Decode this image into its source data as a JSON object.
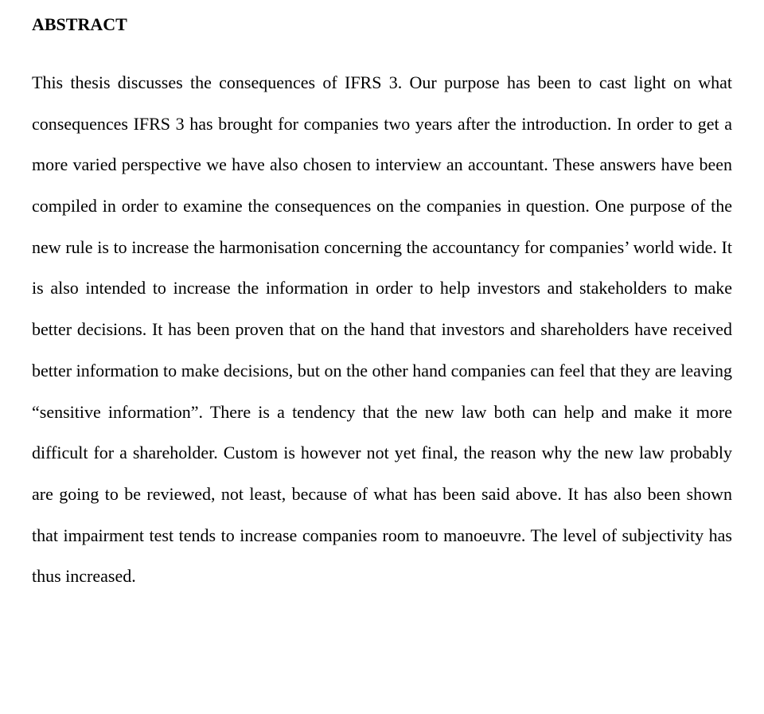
{
  "document": {
    "heading": "ABSTRACT",
    "body": "This thesis discusses the consequences of IFRS 3. Our purpose has been to cast light on what consequences IFRS 3 has brought for companies two years after the introduction. In order to get a more varied perspective we have also chosen to interview an accountant. These answers have been compiled in order to examine the consequences on the companies in question. One purpose of the new rule is to increase the harmonisation concerning the accountancy for companies’ world wide. It is also intended to increase the information in order to help investors and stakeholders to make better decisions. It has been proven that on the hand that investors and shareholders have received better information to make decisions, but on the other hand companies can feel that they are leaving “sensitive information”. There is a tendency that the new law both can help and make it more difficult for a shareholder. Custom is however not yet final, the reason why the new law probably are going to be reviewed, not least, because of what has been said above. It has also been shown that impairment test tends to increase companies room to manoeuvre. The level of subjectivity has thus increased.",
    "text_color": "#000000",
    "background_color": "#ffffff",
    "font_family": "Times New Roman",
    "heading_fontsize": 22,
    "body_fontsize": 22,
    "line_height": 2.35,
    "alignment": "justify"
  }
}
